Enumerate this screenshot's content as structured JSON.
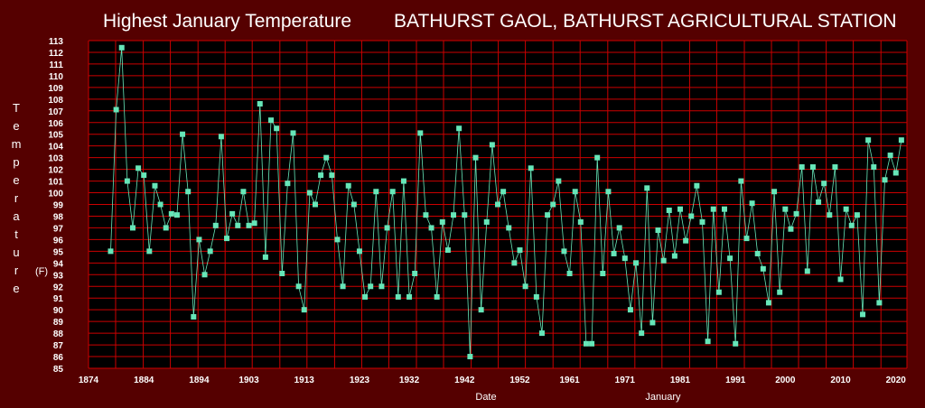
{
  "chart_data": {
    "type": "line",
    "title": "Highest January Temperature",
    "station": "BATHURST GAOL, BATHURST AGRICULTURAL STATION",
    "xlabel": "Date",
    "xlabel2": "January",
    "ylabel": "Temperature",
    "yunit": "(F)",
    "xlim": [
      1874,
      2022
    ],
    "ylim": [
      85,
      113
    ],
    "yticks": [
      85,
      86,
      87,
      88,
      89,
      90,
      91,
      92,
      93,
      94,
      95,
      96,
      97,
      98,
      99,
      100,
      101,
      102,
      103,
      104,
      105,
      106,
      107,
      108,
      109,
      110,
      111,
      112,
      113
    ],
    "xticks": [
      1874,
      1884,
      1894,
      1903,
      1913,
      1923,
      1932,
      1942,
      1952,
      1961,
      1971,
      1981,
      1991,
      2000,
      2010,
      2020
    ],
    "x_gridlines": [
      1874,
      1878.9,
      1883.9,
      1888.8,
      1893.8,
      1898.7,
      1903.6,
      1908.6,
      1913.5,
      1918.5,
      1923.4,
      1928.3,
      1933.3,
      1938.2,
      1943.2,
      1948.1,
      1953,
      1958,
      1962.9,
      1967.9,
      1972.8,
      1977.7,
      1982.7,
      1987.6,
      1992.6,
      1997.5,
      2002.4,
      2007.4,
      2012.3,
      2017.3,
      2022.2
    ],
    "grid": true,
    "colors": {
      "background": "#550000",
      "plot_background": "#000000",
      "grid": "#cc0000",
      "series": "#66e6b8",
      "text": "#ffffff"
    },
    "series": [
      {
        "x": [
          1878,
          1879,
          1880,
          1881,
          1882,
          1883,
          1884,
          1885,
          1886,
          1887,
          1888,
          1889,
          1890,
          1891,
          1892,
          1893,
          1894,
          1895,
          1896,
          1897,
          1898,
          1899,
          1900,
          1901,
          1902,
          1903,
          1904,
          1905,
          1906,
          1907,
          1908,
          1909,
          1910,
          1911,
          1912,
          1913,
          1914,
          1915,
          1916,
          1917,
          1918,
          1919,
          1920,
          1921,
          1922,
          1923,
          1924,
          1925,
          1926,
          1927,
          1928,
          1929,
          1930,
          1931,
          1932,
          1933,
          1934,
          1935,
          1936,
          1937,
          1938,
          1939,
          1940,
          1941,
          1942,
          1943,
          1944,
          1945,
          1946,
          1947,
          1948,
          1949,
          1950,
          1951,
          1952,
          1953,
          1954,
          1955,
          1956,
          1957,
          1958,
          1959,
          1960,
          1961,
          1962,
          1963,
          1964,
          1965,
          1966,
          1967,
          1968,
          1969,
          1970,
          1971,
          1972,
          1973,
          1974,
          1975,
          1976,
          1977,
          1978,
          1979,
          1980,
          1981,
          1982,
          1983,
          1984,
          1985,
          1986,
          1987,
          1988,
          1989,
          1990,
          1991,
          1992,
          1993,
          1994,
          1995,
          1996,
          1997,
          1998,
          1999,
          2000,
          2001,
          2002,
          2003,
          2004,
          2005,
          2006,
          2007,
          2008,
          2009,
          2010,
          2011,
          2012,
          2013,
          2014,
          2015,
          2016,
          2017,
          2018,
          2019,
          2020,
          2021
        ],
        "values": [
          95,
          107.1,
          112.4,
          101,
          97,
          102.1,
          101.5,
          95,
          100.6,
          99,
          97,
          98.2,
          98.1,
          105,
          100.1,
          89.4,
          96,
          93,
          95,
          97.2,
          104.8,
          96.1,
          98.2,
          97.2,
          100.1,
          97.2,
          97.4,
          107.6,
          94.5,
          106.2,
          105.5,
          93.1,
          100.8,
          105.1,
          92,
          90,
          100,
          99,
          101.5,
          103,
          101.5,
          96,
          92,
          100.6,
          99,
          95,
          91.1,
          92,
          100.1,
          92,
          97,
          100.1,
          91.1,
          101,
          91.1,
          93.1,
          105.1,
          98.1,
          97,
          91.1,
          97.5,
          95.1,
          98.1,
          105.5,
          98.1,
          86,
          103,
          90,
          97.5,
          104.1,
          99,
          100.1,
          97,
          94,
          95.1,
          92,
          102.1,
          91.1,
          88,
          98.1,
          99,
          101,
          95,
          93.1,
          100.1,
          97.5,
          87.1,
          87.1,
          103,
          93.1,
          100.1,
          94.8,
          97,
          94.4,
          90,
          94,
          88,
          100.4,
          88.9,
          96.8,
          94.2,
          98.5,
          94.6,
          98.6,
          95.9,
          98,
          100.6,
          97.5,
          87.3,
          98.6,
          91.5,
          98.6,
          94.4,
          87.1,
          101,
          96.1,
          99.1,
          94.8,
          93.5,
          90.6,
          100.1,
          91.5,
          98.6,
          96.9,
          98.2,
          102.2,
          93.3,
          102.2,
          99.2,
          100.8,
          98.1,
          102.2,
          92.6,
          98.6,
          97.2,
          98.1,
          89.6,
          104.5,
          102.2,
          90.6,
          101.1,
          103.2,
          101.7,
          104.5
        ]
      }
    ]
  }
}
